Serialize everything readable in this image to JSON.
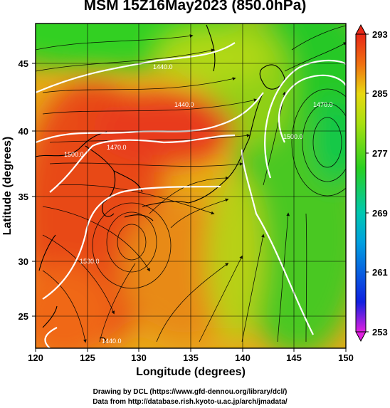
{
  "title": "MSM 15Z16May2023 (850.0hPa)",
  "xlabel": "Longitude (degrees)",
  "ylabel": "Latitude  (degrees)",
  "credits": {
    "line1": "Drawing by DCL (https://www.gfd-dennou.org/library/dcl/)",
    "line2": "Data from http://database.rish.kyoto-u.ac.jp/arch/jmadata/"
  },
  "map": {
    "lon_range": [
      120,
      150
    ],
    "lat_range": [
      22.4,
      47.6
    ],
    "x_ticks": [
      "120",
      "125",
      "130",
      "135",
      "140",
      "145",
      "150"
    ],
    "y_ticks": [
      "25",
      "30",
      "35",
      "40",
      "45"
    ],
    "contour_labels": [
      "1440.0",
      "1440.0",
      "1500.0",
      "1470.0",
      "1530.0",
      "1500.0",
      "1470.0",
      "1440.0"
    ],
    "colorbar": {
      "ticks": [
        "253",
        "261",
        "269",
        "277",
        "285",
        "293"
      ],
      "unit_range": [
        253,
        293
      ]
    }
  },
  "chart_data": {
    "type": "heatmap",
    "title": "MSM 15Z16May2023 (850.0hPa)",
    "xlabel": "Longitude (degrees)",
    "ylabel": "Latitude  (degrees)",
    "xlim": [
      120,
      150
    ],
    "ylim": [
      22.4,
      47.6
    ],
    "colorbar_range": [
      253,
      293
    ],
    "colorbar_ticks": [
      253,
      261,
      269,
      277,
      285,
      293
    ],
    "colors": {
      "warm_core": "#e83a1c",
      "orange": "#f08a10",
      "yellow": "#e8d810",
      "green": "#28d020",
      "cyan": "#00c8e0",
      "blue": "#1020e0",
      "magenta": "#e020e0"
    }
  }
}
